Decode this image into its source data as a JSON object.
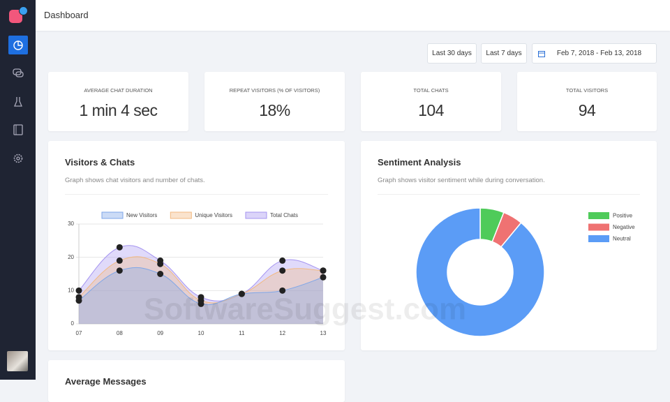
{
  "header": {
    "title": "Dashboard"
  },
  "filters": {
    "buttons": [
      "Last 30 days",
      "Last 7 days"
    ],
    "date_range": "Feb 7, 2018 - Feb 13, 2018"
  },
  "stats": [
    {
      "label": "AVERAGE CHAT DURATION",
      "value": "1 min 4 sec"
    },
    {
      "label": "REPEAT VISITORS (% OF VISITORS)",
      "value": "18%"
    },
    {
      "label": "TOTAL CHATS",
      "value": "104"
    },
    {
      "label": "TOTAL VISITORS",
      "value": "94"
    }
  ],
  "chart_data": [
    {
      "type": "line",
      "title": "Visitors & Chats",
      "subtitle": "Graph shows chat visitors and number of chats.",
      "categories": [
        "07",
        "08",
        "09",
        "10",
        "11",
        "12",
        "13"
      ],
      "ylim": [
        0,
        30
      ],
      "yticks": [
        0,
        10,
        20,
        30
      ],
      "grid": true,
      "series": [
        {
          "name": "New Visitors",
          "color": "#7ea6e8",
          "values": [
            7,
            16,
            15,
            6,
            9,
            10,
            14
          ]
        },
        {
          "name": "Unique Visitors",
          "color": "#f2b981",
          "values": [
            8,
            19,
            18,
            7,
            9,
            16,
            16
          ]
        },
        {
          "name": "Total Chats",
          "color": "#a594f0",
          "values": [
            10,
            23,
            19,
            8,
            9,
            19,
            16
          ]
        }
      ]
    },
    {
      "type": "pie",
      "title": "Sentiment Analysis",
      "subtitle": "Graph shows visitor sentiment while during conversation.",
      "categories": [
        "Positive",
        "Negative",
        "Neutral"
      ],
      "values": [
        6,
        5,
        89
      ],
      "colors": [
        "#4fcb5a",
        "#ef7272",
        "#5b9cf6"
      ],
      "legend": "right"
    }
  ],
  "next_card": {
    "title": "Average Messages"
  },
  "watermark": "SoftwareSuggest.com"
}
